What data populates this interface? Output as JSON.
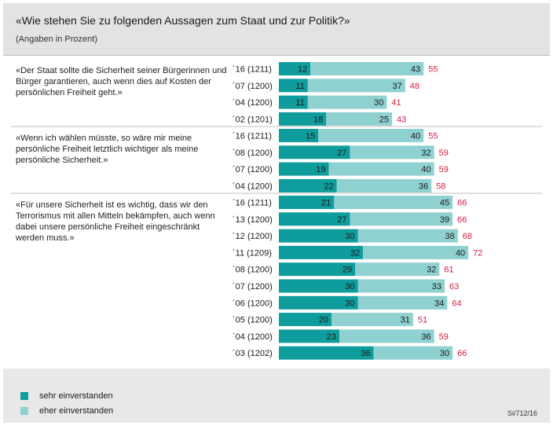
{
  "title": "«Wie stehen Sie zu folgenden Aussagen zum Staat und zur Politik?»",
  "subtitle": "(Angaben in Prozent)",
  "source": "Si/712/16",
  "colors": {
    "sehr": "#0f9c9c",
    "eher": "#8fd0d0",
    "total": "#d81e3e"
  },
  "chart_data": {
    "type": "bar",
    "stacked": true,
    "orientation": "horizontal",
    "legend": [
      {
        "name": "sehr einverstanden",
        "color": "#0f9c9c"
      },
      {
        "name": "eher einverstanden",
        "color": "#8fd0d0"
      }
    ],
    "groups": [
      {
        "statement": "«Der Staat sollte die Sicherheit seiner Bürgerinnen und Bürger garantieren, auch wenn dies auf Kosten der persönlichen Freiheit geht.»",
        "rows": [
          {
            "label": "´16 (1211)",
            "sehr": 12,
            "eher": 43,
            "total": 55
          },
          {
            "label": "´07 (1200)",
            "sehr": 11,
            "eher": 37,
            "total": 48
          },
          {
            "label": "´04 (1200)",
            "sehr": 11,
            "eher": 30,
            "total": 41
          },
          {
            "label": "´02 (1201)",
            "sehr": 18,
            "eher": 25,
            "total": 43
          }
        ]
      },
      {
        "statement": "«Wenn ich wählen müsste, so wäre mir meine persönliche Freiheit letztlich wichtiger als meine persönliche Sicherheit.»",
        "rows": [
          {
            "label": "´16 (1211)",
            "sehr": 15,
            "eher": 40,
            "total": 55
          },
          {
            "label": "´08 (1200)",
            "sehr": 27,
            "eher": 32,
            "total": 59
          },
          {
            "label": "´07 (1200)",
            "sehr": 19,
            "eher": 40,
            "total": 59
          },
          {
            "label": "´04 (1200)",
            "sehr": 22,
            "eher": 36,
            "total": 58
          }
        ]
      },
      {
        "statement": "«Für unsere Sicherheit ist es wichtig, dass wir den Terrorismus mit allen Mitteln bekämpfen, auch wenn dabei unsere persönliche Freiheit eingeschränkt werden muss.»",
        "rows": [
          {
            "label": "´16 (1211)",
            "sehr": 21,
            "eher": 45,
            "total": 66
          },
          {
            "label": "´13 (1200)",
            "sehr": 27,
            "eher": 39,
            "total": 66
          },
          {
            "label": "´12 (1200)",
            "sehr": 30,
            "eher": 38,
            "total": 68
          },
          {
            "label": "´11 (1209)",
            "sehr": 32,
            "eher": 40,
            "total": 72
          },
          {
            "label": "´08 (1200)",
            "sehr": 29,
            "eher": 32,
            "total": 61
          },
          {
            "label": "´07 (1200)",
            "sehr": 30,
            "eher": 33,
            "total": 63
          },
          {
            "label": "´06 (1200)",
            "sehr": 30,
            "eher": 34,
            "total": 64
          },
          {
            "label": "´05 (1200)",
            "sehr": 20,
            "eher": 31,
            "total": 51
          },
          {
            "label": "´04 (1200)",
            "sehr": 23,
            "eher": 36,
            "total": 59
          },
          {
            "label": "´03 (1202)",
            "sehr": 36,
            "eher": 30,
            "total": 66
          }
        ]
      }
    ]
  }
}
